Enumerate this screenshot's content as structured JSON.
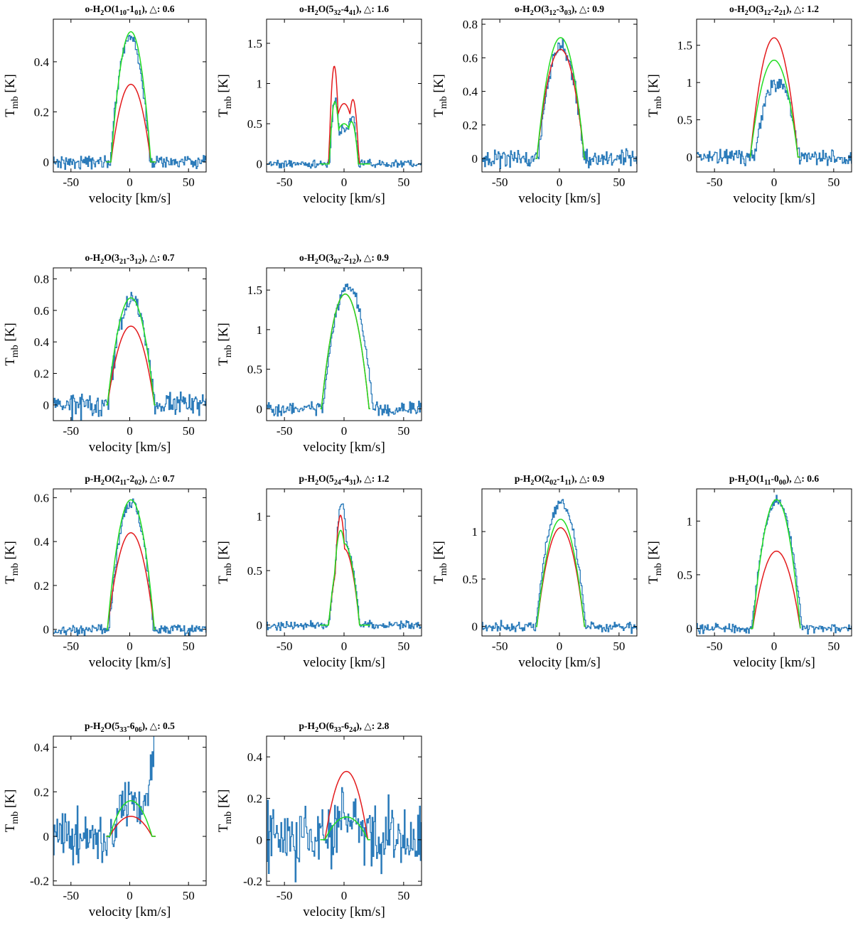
{
  "figure": {
    "colors": {
      "observed": "#2b7bba",
      "model_red": "#e31a1c",
      "model_green": "#22dd22"
    }
  },
  "chart_data": [
    {
      "type": "line",
      "title": "o-H2O(110-101), △: 0.6",
      "title_parts": {
        "prefix": "o-H",
        "sub1": "2",
        "mid": "O(1",
        "sub2": "10",
        "mid2": "-1",
        "sub3": "01",
        "suffix": "), △: 0.6"
      },
      "xlabel": "velocity [km/s]",
      "ylabel": {
        "main": "T",
        "sub": "mb",
        "unit": " [K]"
      },
      "xlim": [
        -65,
        65
      ],
      "ylim": [
        -0.04,
        0.57
      ],
      "xticks": [
        -50,
        0,
        50
      ],
      "xtick_labels": [
        "-50",
        "0",
        "50"
      ],
      "yticks": [
        0,
        0.2,
        0.4
      ],
      "ytick_labels": [
        "0",
        "0.2",
        "0.4"
      ],
      "series": [
        {
          "name": "observed",
          "kind": "obs",
          "noise": 0.012,
          "components": [
            {
              "A": 0.5,
              "v0": 0,
              "w": 17
            }
          ]
        },
        {
          "name": "model red",
          "kind": "red",
          "components": [
            {
              "A": 0.31,
              "v0": 1,
              "w": 17
            }
          ]
        },
        {
          "name": "model green",
          "kind": "green",
          "components": [
            {
              "A": 0.52,
              "v0": 1,
              "w": 17
            }
          ]
        }
      ]
    },
    {
      "type": "line",
      "title": "o-H2O(532-441), △: 1.6",
      "title_parts": {
        "prefix": "o-H",
        "sub1": "2",
        "mid": "O(5",
        "sub2": "32",
        "mid2": "-4",
        "sub3": "41",
        "suffix": "), △: 1.6"
      },
      "xlabel": "velocity [km/s]",
      "ylabel": {
        "main": "T",
        "sub": "mb",
        "unit": " [K]"
      },
      "xlim": [
        -65,
        65
      ],
      "ylim": [
        -0.1,
        1.8
      ],
      "xticks": [
        -50,
        0,
        50
      ],
      "xtick_labels": [
        "-50",
        "0",
        "50"
      ],
      "yticks": [
        0,
        0.5,
        1,
        1.5
      ],
      "ytick_labels": [
        "0",
        "0.5",
        "1",
        "1.5"
      ],
      "series": [
        {
          "name": "observed",
          "kind": "obs",
          "noise": 0.025,
          "components": [
            {
              "A": 0.45,
              "v0": 0,
              "w": 12
            },
            {
              "A": 0.55,
              "v0": -8.5,
              "w": 4
            },
            {
              "A": 0.3,
              "v0": 7.5,
              "w": 4
            }
          ]
        },
        {
          "name": "model red",
          "kind": "red",
          "components": [
            {
              "A": 0.75,
              "v0": 0,
              "w": 12
            },
            {
              "A": 0.85,
              "v0": -9,
              "w": 4
            },
            {
              "A": 0.4,
              "v0": 9,
              "w": 4
            }
          ]
        },
        {
          "name": "model green",
          "kind": "green",
          "components": [
            {
              "A": 0.5,
              "v0": 0,
              "w": 12
            },
            {
              "A": 0.5,
              "v0": -8.5,
              "w": 4
            },
            {
              "A": 0.2,
              "v0": 8,
              "w": 4
            }
          ]
        }
      ]
    },
    {
      "type": "line",
      "title": "o-H2O(312-303), △: 0.9",
      "title_parts": {
        "prefix": "o-H",
        "sub1": "2",
        "mid": "O(3",
        "sub2": "12",
        "mid2": "-3",
        "sub3": "03",
        "suffix": "), △: 0.9"
      },
      "xlabel": "velocity [km/s]",
      "ylabel": {
        "main": "T",
        "sub": "mb",
        "unit": " [K]"
      },
      "xlim": [
        -65,
        65
      ],
      "ylim": [
        -0.08,
        0.83
      ],
      "xticks": [
        -50,
        0,
        50
      ],
      "xtick_labels": [
        "-50",
        "0",
        "50"
      ],
      "yticks": [
        0,
        0.2,
        0.4,
        0.6,
        0.8
      ],
      "ytick_labels": [
        "0",
        "0.2",
        "0.4",
        "0.6",
        "0.8"
      ],
      "series": [
        {
          "name": "observed",
          "kind": "obs",
          "noise": 0.025,
          "components": [
            {
              "A": 0.67,
              "v0": 1,
              "w": 19
            }
          ]
        },
        {
          "name": "model red",
          "kind": "red",
          "components": [
            {
              "A": 0.65,
              "v0": 1,
              "w": 20
            }
          ]
        },
        {
          "name": "model green",
          "kind": "green",
          "components": [
            {
              "A": 0.72,
              "v0": 1,
              "w": 20
            }
          ]
        }
      ]
    },
    {
      "type": "line",
      "title": "o-H2O(312-221), △: 1.2",
      "title_parts": {
        "prefix": "o-H",
        "sub1": "2",
        "mid": "O(3",
        "sub2": "12",
        "mid2": "-2",
        "sub3": "21",
        "suffix": "), △: 1.2"
      },
      "xlabel": "velocity [km/s]",
      "ylabel": {
        "main": "T",
        "sub": "mb",
        "unit": " [K]"
      },
      "xlim": [
        -65,
        65
      ],
      "ylim": [
        -0.2,
        1.85
      ],
      "xticks": [
        -50,
        0,
        50
      ],
      "xtick_labels": [
        "-50",
        "0",
        "50"
      ],
      "yticks": [
        0,
        0.5,
        1,
        1.5
      ],
      "ytick_labels": [
        "0",
        "0.5",
        "1",
        "1.5"
      ],
      "series": [
        {
          "name": "observed",
          "kind": "obs",
          "noise": 0.05,
          "components": [
            {
              "A": 1.0,
              "v0": 2,
              "w": 19
            }
          ]
        },
        {
          "name": "model red",
          "kind": "red",
          "components": [
            {
              "A": 1.6,
              "v0": 0,
              "w": 20
            }
          ]
        },
        {
          "name": "model green",
          "kind": "green",
          "components": [
            {
              "A": 1.3,
              "v0": 0,
              "w": 20
            }
          ]
        }
      ]
    },
    {
      "type": "line",
      "title": "o-H2O(321-312), △: 0.7",
      "title_parts": {
        "prefix": "o-H",
        "sub1": "2",
        "mid": "O(3",
        "sub2": "21",
        "mid2": "-3",
        "sub3": "12",
        "suffix": "), △: 0.7"
      },
      "xlabel": "velocity [km/s]",
      "ylabel": {
        "main": "T",
        "sub": "mb",
        "unit": " [K]"
      },
      "xlim": [
        -65,
        65
      ],
      "ylim": [
        -0.1,
        0.87
      ],
      "xticks": [
        -50,
        0,
        50
      ],
      "xtick_labels": [
        "-50",
        "0",
        "50"
      ],
      "yticks": [
        0,
        0.2,
        0.4,
        0.6,
        0.8
      ],
      "ytick_labels": [
        "0",
        "0.2",
        "0.4",
        "0.6",
        "0.8"
      ],
      "series": [
        {
          "name": "observed",
          "kind": "obs",
          "noise": 0.035,
          "components": [
            {
              "A": 0.66,
              "v0": 1,
              "w": 20
            }
          ]
        },
        {
          "name": "model red",
          "kind": "red",
          "components": [
            {
              "A": 0.5,
              "v0": 1,
              "w": 20
            }
          ]
        },
        {
          "name": "model green",
          "kind": "green",
          "components": [
            {
              "A": 0.68,
              "v0": 1,
              "w": 20
            }
          ]
        }
      ]
    },
    {
      "type": "line",
      "title": "o-H2O(302-212), △: 0.9",
      "title_parts": {
        "prefix": "o-H",
        "sub1": "2",
        "mid": "O(3",
        "sub2": "02",
        "mid2": "-2",
        "sub3": "12",
        "suffix": "), △: 0.9"
      },
      "xlabel": "velocity [km/s]",
      "ylabel": {
        "main": "T",
        "sub": "mb",
        "unit": " [K]"
      },
      "xlim": [
        -65,
        65
      ],
      "ylim": [
        -0.15,
        1.78
      ],
      "xticks": [
        -50,
        0,
        50
      ],
      "xtick_labels": [
        "-50",
        "0",
        "50"
      ],
      "yticks": [
        0,
        0.5,
        1,
        1.5
      ],
      "ytick_labels": [
        "0",
        "0.5",
        "1",
        "1.5"
      ],
      "series": [
        {
          "name": "observed",
          "kind": "obs",
          "noise": 0.04,
          "components": [
            {
              "A": 1.55,
              "v0": 3,
              "w": 21
            }
          ]
        },
        {
          "name": "model red",
          "kind": "red",
          "components": [
            {
              "A": 1.45,
              "v0": 1,
              "w": 20
            }
          ]
        },
        {
          "name": "model green",
          "kind": "green",
          "components": [
            {
              "A": 1.45,
              "v0": 1,
              "w": 20
            }
          ]
        }
      ]
    },
    {
      "type": "line",
      "title": "p-H2O(211-202), △: 0.7",
      "title_parts": {
        "prefix": "p-H",
        "sub1": "2",
        "mid": "O(2",
        "sub2": "11",
        "mid2": "-2",
        "sub3": "02",
        "suffix": "), △: 0.7"
      },
      "xlabel": "velocity [km/s]",
      "ylabel": {
        "main": "T",
        "sub": "mb",
        "unit": " [K]"
      },
      "xlim": [
        -65,
        65
      ],
      "ylim": [
        -0.03,
        0.64
      ],
      "xticks": [
        -50,
        0,
        50
      ],
      "xtick_labels": [
        "-50",
        "0",
        "50"
      ],
      "yticks": [
        0,
        0.2,
        0.4,
        0.6
      ],
      "ytick_labels": [
        "0",
        "0.2",
        "0.4",
        "0.6"
      ],
      "series": [
        {
          "name": "observed",
          "kind": "obs",
          "noise": 0.012,
          "components": [
            {
              "A": 0.58,
              "v0": 1,
              "w": 19
            }
          ]
        },
        {
          "name": "model red",
          "kind": "red",
          "components": [
            {
              "A": 0.44,
              "v0": 1,
              "w": 20
            }
          ]
        },
        {
          "name": "model green",
          "kind": "green",
          "components": [
            {
              "A": 0.59,
              "v0": 1,
              "w": 20
            }
          ]
        }
      ]
    },
    {
      "type": "line",
      "title": "p-H2O(524-431), △: 1.2",
      "title_parts": {
        "prefix": "p-H",
        "sub1": "2",
        "mid": "O(5",
        "sub2": "24",
        "mid2": "-4",
        "sub3": "31",
        "suffix": "), △: 1.2"
      },
      "xlabel": "velocity [km/s]",
      "ylabel": {
        "main": "T",
        "sub": "mb",
        "unit": " [K]"
      },
      "xlim": [
        -65,
        65
      ],
      "ylim": [
        -0.1,
        1.25
      ],
      "xticks": [
        -50,
        0,
        50
      ],
      "xtick_labels": [
        "-50",
        "0",
        "50"
      ],
      "yticks": [
        0,
        0.5,
        1
      ],
      "ytick_labels": [
        "0",
        "0.5",
        "1"
      ],
      "series": [
        {
          "name": "observed",
          "kind": "obs",
          "noise": 0.02,
          "components": [
            {
              "A": 0.75,
              "v0": 0,
              "w": 13
            },
            {
              "A": 0.4,
              "v0": -3,
              "w": 5
            }
          ]
        },
        {
          "name": "model red",
          "kind": "red",
          "components": [
            {
              "A": 0.7,
              "v0": 0,
              "w": 13
            },
            {
              "A": 0.35,
              "v0": -3.5,
              "w": 4
            }
          ]
        },
        {
          "name": "model green",
          "kind": "green",
          "components": [
            {
              "A": 0.75,
              "v0": 0,
              "w": 13
            },
            {
              "A": 0.17,
              "v0": -4,
              "w": 4
            }
          ]
        }
      ]
    },
    {
      "type": "line",
      "title": "p-H2O(202-111), △: 0.9",
      "title_parts": {
        "prefix": "p-H",
        "sub1": "2",
        "mid": "O(2",
        "sub2": "02",
        "mid2": "-1",
        "sub3": "11",
        "suffix": "), △: 0.9"
      },
      "xlabel": "velocity [km/s]",
      "ylabel": {
        "main": "T",
        "sub": "mb",
        "unit": " [K]"
      },
      "xlim": [
        -65,
        65
      ],
      "ylim": [
        -0.1,
        1.45
      ],
      "xticks": [
        -50,
        0,
        50
      ],
      "xtick_labels": [
        "-50",
        "0",
        "50"
      ],
      "yticks": [
        0,
        0.5,
        1
      ],
      "ytick_labels": [
        "0",
        "0.5",
        "1"
      ],
      "series": [
        {
          "name": "observed",
          "kind": "obs",
          "noise": 0.03,
          "components": [
            {
              "A": 1.3,
              "v0": 1,
              "w": 21
            }
          ]
        },
        {
          "name": "model red",
          "kind": "red",
          "components": [
            {
              "A": 1.04,
              "v0": 1,
              "w": 20
            }
          ]
        },
        {
          "name": "model green",
          "kind": "green",
          "components": [
            {
              "A": 1.13,
              "v0": 1,
              "w": 20
            }
          ]
        }
      ]
    },
    {
      "type": "line",
      "title": "p-H2O(111-000), △: 0.6",
      "title_parts": {
        "prefix": "p-H",
        "sub1": "2",
        "mid": "O(1",
        "sub2": "11",
        "mid2": "-0",
        "sub3": "00",
        "suffix": "), △: 0.6"
      },
      "xlabel": "velocity [km/s]",
      "ylabel": {
        "main": "T",
        "sub": "mb",
        "unit": " [K]"
      },
      "xlim": [
        -65,
        65
      ],
      "ylim": [
        -0.07,
        1.3
      ],
      "xticks": [
        -50,
        0,
        50
      ],
      "xtick_labels": [
        "-50",
        "0",
        "50"
      ],
      "yticks": [
        0,
        0.5,
        1
      ],
      "ytick_labels": [
        "0",
        "0.5",
        "1"
      ],
      "series": [
        {
          "name": "observed",
          "kind": "obs",
          "noise": 0.02,
          "components": [
            {
              "A": 1.2,
              "v0": 2,
              "w": 21
            }
          ]
        },
        {
          "name": "model red",
          "kind": "red",
          "components": [
            {
              "A": 0.72,
              "v0": 2,
              "w": 20
            }
          ]
        },
        {
          "name": "model green",
          "kind": "green",
          "components": [
            {
              "A": 1.2,
              "v0": 2,
              "w": 20
            }
          ]
        }
      ]
    },
    {
      "type": "line",
      "title": "p-H2O(533-606), △: 0.5",
      "title_parts": {
        "prefix": "p-H",
        "sub1": "2",
        "mid": "O(5",
        "sub2": "33",
        "mid2": "-6",
        "sub3": "06",
        "suffix": "), △: 0.5"
      },
      "xlabel": "velocity [km/s]",
      "ylabel": {
        "main": "T",
        "sub": "mb",
        "unit": " [K]"
      },
      "xlim": [
        -65,
        65
      ],
      "ylim": [
        -0.22,
        0.45
      ],
      "xticks": [
        -50,
        0,
        50
      ],
      "xtick_labels": [
        "-50",
        "0",
        "50"
      ],
      "yticks": [
        -0.2,
        0,
        0.2,
        0.4
      ],
      "ytick_labels": [
        "-0.2",
        "0",
        "0.2",
        "0.4"
      ],
      "series": [
        {
          "name": "observed",
          "kind": "obs",
          "noise": 0.05,
          "clip": true,
          "components": [
            {
              "A": 0.17,
              "v0": 0,
              "w": 15
            },
            {
              "A": 0.9,
              "v0": 50,
              "w": 40
            }
          ]
        },
        {
          "name": "model red",
          "kind": "red",
          "range": [
            -20,
            22
          ],
          "components": [
            {
              "A": 0.09,
              "v0": 1,
              "w": 18
            }
          ]
        },
        {
          "name": "model green",
          "kind": "green",
          "range": [
            -20,
            22
          ],
          "components": [
            {
              "A": 0.16,
              "v0": 1,
              "w": 18
            }
          ]
        }
      ]
    },
    {
      "type": "line",
      "title": "p-H2O(633-624), △: 2.8",
      "title_parts": {
        "prefix": "p-H",
        "sub1": "2",
        "mid": "O(6",
        "sub2": "33",
        "mid2": "-6",
        "sub3": "24",
        "suffix": "), △: 2.8"
      },
      "xlabel": "velocity [km/s]",
      "ylabel": {
        "main": "T",
        "sub": "mb",
        "unit": " [K]"
      },
      "xlim": [
        -65,
        65
      ],
      "ylim": [
        -0.22,
        0.5
      ],
      "xticks": [
        -50,
        0,
        50
      ],
      "xtick_labels": [
        "-50",
        "0",
        "50"
      ],
      "yticks": [
        -0.2,
        0,
        0.2,
        0.4
      ],
      "ytick_labels": [
        "-0.2",
        "0",
        "0.2",
        "0.4"
      ],
      "series": [
        {
          "name": "observed",
          "kind": "obs",
          "noise": 0.085,
          "clip": true,
          "components": [
            {
              "A": 0.12,
              "v0": 2,
              "w": 20
            }
          ]
        },
        {
          "name": "model red",
          "kind": "red",
          "components": [
            {
              "A": 0.33,
              "v0": 2,
              "w": 18
            }
          ]
        },
        {
          "name": "model green",
          "kind": "green",
          "components": [
            {
              "A": 0.11,
              "v0": 2,
              "w": 18
            }
          ]
        }
      ]
    }
  ]
}
